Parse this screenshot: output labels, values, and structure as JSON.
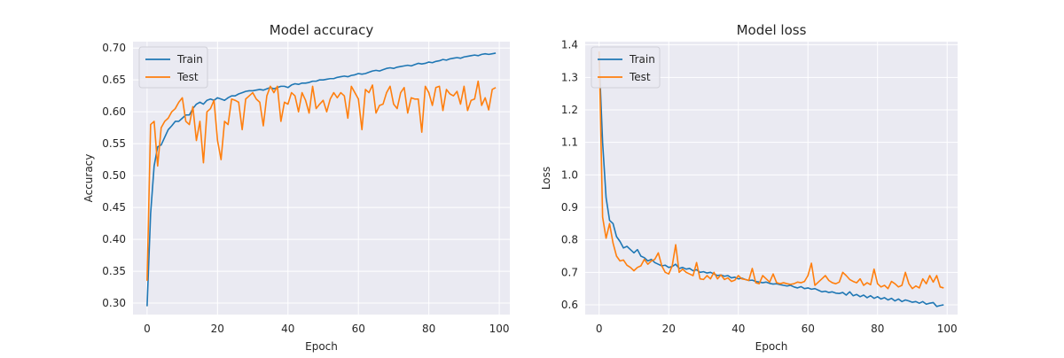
{
  "colors": {
    "train": "#1f77b4",
    "test": "#ff7f0e",
    "plot_bg": "#eaeaf2",
    "grid": "#ffffff"
  },
  "chart_data": [
    {
      "type": "line",
      "title": "Model accuracy",
      "xlabel": "Epoch",
      "ylabel": "Accuracy",
      "xlim": [
        -4,
        103
      ],
      "ylim": [
        0.282,
        0.71
      ],
      "xticks": [
        0,
        20,
        40,
        60,
        80,
        100
      ],
      "yticks": [
        0.3,
        0.35,
        0.4,
        0.45,
        0.5,
        0.55,
        0.6,
        0.65,
        0.7
      ],
      "ytick_labels": [
        "0.30",
        "0.35",
        "0.40",
        "0.45",
        "0.50",
        "0.55",
        "0.60",
        "0.65",
        "0.70"
      ],
      "grid": true,
      "legend_position": "top-left",
      "series": [
        {
          "name": "Train",
          "color_key": "train",
          "values": [
            0.295,
            0.44,
            0.515,
            0.545,
            0.548,
            0.56,
            0.572,
            0.578,
            0.585,
            0.585,
            0.59,
            0.595,
            0.595,
            0.605,
            0.612,
            0.615,
            0.612,
            0.618,
            0.62,
            0.618,
            0.622,
            0.62,
            0.618,
            0.622,
            0.625,
            0.625,
            0.628,
            0.63,
            0.632,
            0.633,
            0.633,
            0.634,
            0.635,
            0.634,
            0.636,
            0.638,
            0.636,
            0.638,
            0.64,
            0.64,
            0.638,
            0.642,
            0.644,
            0.643,
            0.645,
            0.645,
            0.646,
            0.648,
            0.648,
            0.65,
            0.65,
            0.651,
            0.652,
            0.652,
            0.654,
            0.655,
            0.656,
            0.655,
            0.657,
            0.658,
            0.66,
            0.659,
            0.66,
            0.662,
            0.664,
            0.665,
            0.664,
            0.666,
            0.668,
            0.669,
            0.668,
            0.67,
            0.671,
            0.672,
            0.673,
            0.672,
            0.674,
            0.676,
            0.675,
            0.676,
            0.678,
            0.677,
            0.679,
            0.68,
            0.682,
            0.681,
            0.683,
            0.684,
            0.685,
            0.684,
            0.686,
            0.687,
            0.688,
            0.689,
            0.688,
            0.69,
            0.691,
            0.69,
            0.691,
            0.692
          ]
        },
        {
          "name": "Test",
          "color_key": "test",
          "values": [
            0.335,
            0.58,
            0.585,
            0.515,
            0.575,
            0.585,
            0.59,
            0.6,
            0.605,
            0.615,
            0.622,
            0.585,
            0.58,
            0.608,
            0.555,
            0.585,
            0.52,
            0.6,
            0.605,
            0.618,
            0.555,
            0.525,
            0.585,
            0.58,
            0.62,
            0.618,
            0.615,
            0.572,
            0.62,
            0.625,
            0.63,
            0.62,
            0.615,
            0.578,
            0.625,
            0.64,
            0.63,
            0.64,
            0.585,
            0.615,
            0.612,
            0.63,
            0.625,
            0.6,
            0.63,
            0.618,
            0.598,
            0.64,
            0.605,
            0.612,
            0.618,
            0.6,
            0.62,
            0.63,
            0.622,
            0.63,
            0.625,
            0.59,
            0.64,
            0.63,
            0.62,
            0.572,
            0.635,
            0.63,
            0.642,
            0.598,
            0.61,
            0.612,
            0.63,
            0.64,
            0.612,
            0.605,
            0.63,
            0.638,
            0.598,
            0.622,
            0.62,
            0.62,
            0.568,
            0.64,
            0.63,
            0.61,
            0.638,
            0.64,
            0.602,
            0.635,
            0.628,
            0.625,
            0.632,
            0.612,
            0.64,
            0.602,
            0.618,
            0.62,
            0.648,
            0.61,
            0.622,
            0.603,
            0.635,
            0.638
          ]
        }
      ]
    },
    {
      "type": "line",
      "title": "Model loss",
      "xlabel": "Epoch",
      "ylabel": "Loss",
      "xlim": [
        -4,
        103
      ],
      "ylim": [
        0.57,
        1.41
      ],
      "xticks": [
        0,
        20,
        40,
        60,
        80,
        100
      ],
      "yticks": [
        0.6,
        0.7,
        0.8,
        0.9,
        1.0,
        1.1,
        1.2,
        1.3,
        1.4
      ],
      "ytick_labels": [
        "0.6",
        "0.7",
        "0.8",
        "0.9",
        "1.0",
        "1.1",
        "1.2",
        "1.3",
        "1.4"
      ],
      "grid": true,
      "legend_position": "top-left",
      "series": [
        {
          "name": "Train",
          "color_key": "train",
          "values": [
            1.36,
            1.1,
            0.93,
            0.86,
            0.85,
            0.81,
            0.795,
            0.775,
            0.78,
            0.77,
            0.76,
            0.77,
            0.75,
            0.745,
            0.735,
            0.74,
            0.73,
            0.725,
            0.72,
            0.722,
            0.715,
            0.718,
            0.725,
            0.712,
            0.715,
            0.71,
            0.712,
            0.705,
            0.708,
            0.7,
            0.702,
            0.698,
            0.7,
            0.695,
            0.69,
            0.692,
            0.688,
            0.69,
            0.683,
            0.685,
            0.68,
            0.682,
            0.678,
            0.675,
            0.676,
            0.672,
            0.67,
            0.668,
            0.67,
            0.666,
            0.664,
            0.665,
            0.662,
            0.66,
            0.658,
            0.66,
            0.655,
            0.652,
            0.656,
            0.65,
            0.652,
            0.648,
            0.65,
            0.645,
            0.64,
            0.642,
            0.638,
            0.64,
            0.636,
            0.635,
            0.638,
            0.63,
            0.64,
            0.628,
            0.632,
            0.625,
            0.63,
            0.622,
            0.628,
            0.62,
            0.625,
            0.618,
            0.622,
            0.615,
            0.62,
            0.612,
            0.618,
            0.61,
            0.615,
            0.612,
            0.608,
            0.61,
            0.605,
            0.61,
            0.602,
            0.605,
            0.607,
            0.595,
            0.598,
            0.6
          ]
        },
        {
          "name": "Test",
          "color_key": "test",
          "values": [
            1.38,
            0.87,
            0.805,
            0.85,
            0.79,
            0.75,
            0.735,
            0.738,
            0.722,
            0.715,
            0.705,
            0.715,
            0.72,
            0.74,
            0.725,
            0.735,
            0.74,
            0.76,
            0.72,
            0.7,
            0.695,
            0.72,
            0.785,
            0.7,
            0.71,
            0.7,
            0.695,
            0.69,
            0.73,
            0.68,
            0.678,
            0.69,
            0.68,
            0.7,
            0.68,
            0.692,
            0.678,
            0.683,
            0.672,
            0.676,
            0.69,
            0.68,
            0.678,
            0.675,
            0.712,
            0.668,
            0.665,
            0.69,
            0.68,
            0.67,
            0.695,
            0.668,
            0.665,
            0.668,
            0.665,
            0.663,
            0.665,
            0.67,
            0.668,
            0.672,
            0.69,
            0.728,
            0.66,
            0.67,
            0.68,
            0.69,
            0.675,
            0.668,
            0.665,
            0.67,
            0.7,
            0.69,
            0.678,
            0.672,
            0.668,
            0.68,
            0.66,
            0.668,
            0.662,
            0.71,
            0.665,
            0.655,
            0.66,
            0.65,
            0.672,
            0.665,
            0.655,
            0.66,
            0.7,
            0.665,
            0.65,
            0.658,
            0.652,
            0.68,
            0.665,
            0.69,
            0.67,
            0.69,
            0.655,
            0.652
          ]
        }
      ]
    }
  ]
}
